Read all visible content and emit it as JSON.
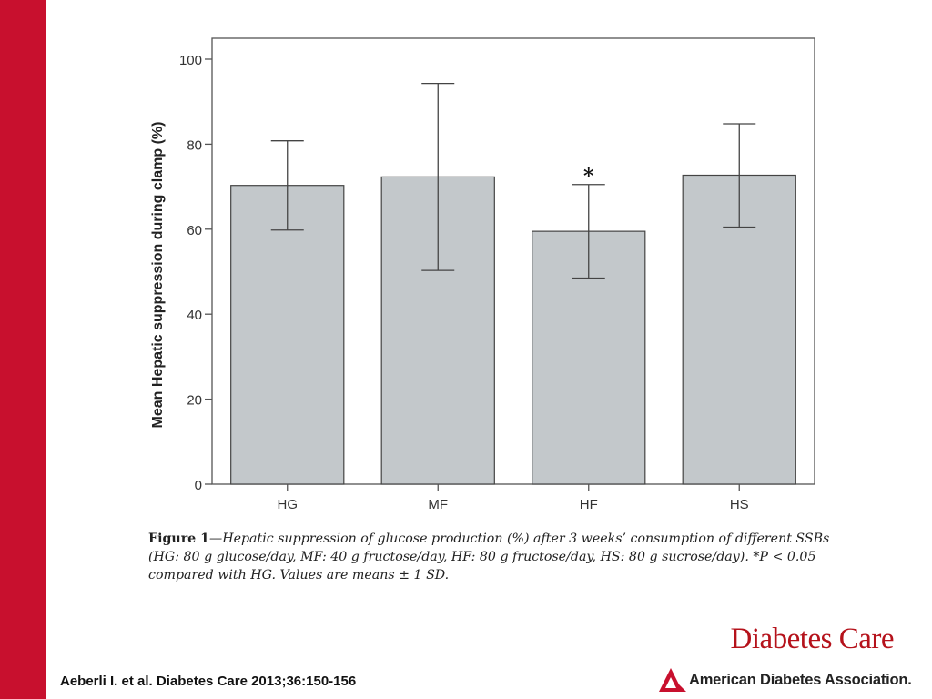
{
  "chart_data": {
    "type": "bar",
    "categories": [
      "HG",
      "MF",
      "HF",
      "HS"
    ],
    "values": [
      70.3,
      72.3,
      59.5,
      72.7
    ],
    "error_upper": [
      80.8,
      94.3,
      70.5,
      84.8
    ],
    "error_lower": [
      59.8,
      50.3,
      48.5,
      60.5
    ],
    "ylabel": "Mean Hepatic suppression during clamp (%)",
    "xlabel": "",
    "ylim": [
      0,
      100
    ],
    "yticks": [
      "0",
      "20",
      "40",
      "60",
      "80",
      "100"
    ],
    "annotations": [
      {
        "category": "HF",
        "text": "*"
      }
    ],
    "bar_color": "#c3c8cb"
  },
  "caption": {
    "figure_label": "Figure 1",
    "text": "—Hepatic suppression of glucose production (%) after 3 weeks’ consumption of different SSBs (HG: 80 g glucose/day, MF: 40 g fructose/day, HF: 80 g fructose/day, HS: 80 g sucrose/day). *P < 0.05 compared with HG. Values are means ± 1 SD."
  },
  "citation": "Aeberli I. et al. Diabetes Care 2013;36:150-156",
  "journal": "Diabetes Care",
  "publisher": "American Diabetes Association.",
  "colors": {
    "accent_red": "#c8102e",
    "journal_red": "#b5121b"
  }
}
